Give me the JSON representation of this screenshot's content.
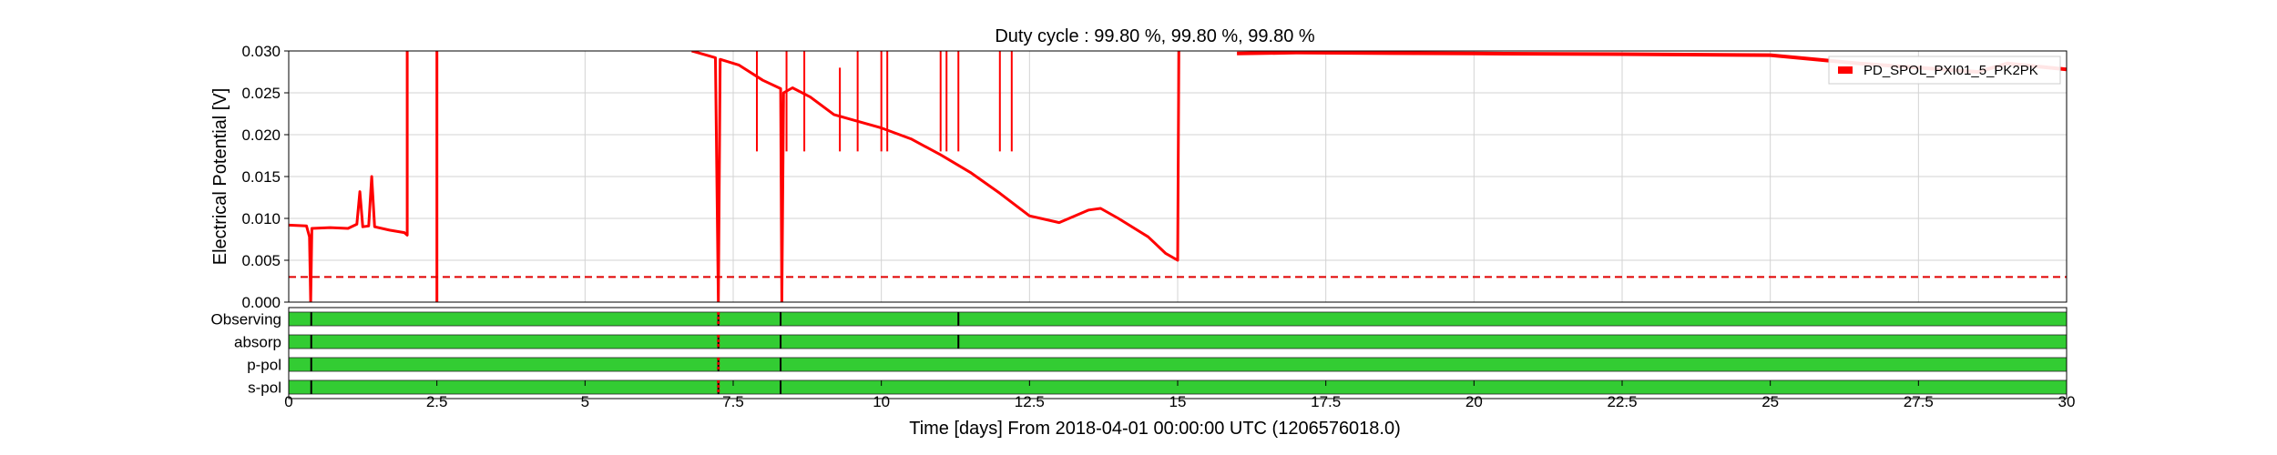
{
  "chart_data": {
    "type": "line",
    "title": "Duty cycle : 99.80 %, 99.80 %, 99.80 %",
    "xlabel": "Time [days] From 2018-04-01 00:00:00 UTC (1206576018.0)",
    "ylabel": "Electrical Potential [V]",
    "xlim": [
      0,
      30
    ],
    "ylim": [
      0,
      0.03
    ],
    "xticks": [
      "0",
      "2.5",
      "5",
      "7.5",
      "10",
      "12.5",
      "15",
      "17.5",
      "20",
      "22.5",
      "25",
      "27.5",
      "30"
    ],
    "yticks": [
      "0.000",
      "0.005",
      "0.010",
      "0.015",
      "0.020",
      "0.025",
      "0.030"
    ],
    "grid": true,
    "legend_position": "top-right",
    "series": [
      {
        "name": "PD_SPOL_PXI01_5_PK2PK",
        "color": "#ff0000",
        "segments": [
          [
            [
              0,
              0.0092
            ],
            [
              0.3,
              0.0091
            ],
            [
              0.35,
              0.0078
            ],
            [
              0.37,
              0.0
            ],
            [
              0.39,
              0.0088
            ],
            [
              0.7,
              0.0089
            ],
            [
              1.0,
              0.0088
            ],
            [
              1.15,
              0.0093
            ],
            [
              1.2,
              0.0132
            ],
            [
              1.25,
              0.009
            ],
            [
              1.35,
              0.0091
            ],
            [
              1.4,
              0.015
            ],
            [
              1.45,
              0.009
            ],
            [
              1.7,
              0.0086
            ],
            [
              1.95,
              0.0083
            ],
            [
              2.0,
              0.008
            ],
            [
              2.0,
              0.03
            ]
          ],
          [
            [
              2.5,
              0.03
            ],
            [
              2.5,
              0.0
            ]
          ],
          [
            [
              6.8,
              0.03
            ],
            [
              7.0,
              0.0296
            ],
            [
              7.2,
              0.0292
            ],
            [
              7.25,
              0.0
            ],
            [
              7.28,
              0.029
            ],
            [
              7.6,
              0.0283
            ],
            [
              8.0,
              0.0265
            ],
            [
              8.3,
              0.0255
            ],
            [
              8.32,
              0.0
            ],
            [
              8.35,
              0.025
            ],
            [
              8.5,
              0.0256
            ],
            [
              8.8,
              0.0245
            ],
            [
              9.2,
              0.0224
            ],
            [
              9.5,
              0.0218
            ],
            [
              10.0,
              0.0208
            ],
            [
              10.5,
              0.0195
            ],
            [
              11.0,
              0.0176
            ],
            [
              11.5,
              0.0155
            ],
            [
              12.0,
              0.013
            ],
            [
              12.5,
              0.0103
            ],
            [
              13.0,
              0.0095
            ],
            [
              13.5,
              0.011
            ],
            [
              13.7,
              0.0112
            ],
            [
              14.0,
              0.01
            ],
            [
              14.5,
              0.0078
            ],
            [
              14.8,
              0.0058
            ],
            [
              15.0,
              0.005
            ],
            [
              15.02,
              0.03
            ]
          ]
        ],
        "spikes": [
          [
            7.9,
            0.03
          ],
          [
            8.4,
            0.03
          ],
          [
            8.7,
            0.03
          ],
          [
            9.3,
            0.028
          ],
          [
            9.6,
            0.03
          ],
          [
            10.0,
            0.03
          ],
          [
            10.1,
            0.03
          ],
          [
            11.0,
            0.03
          ],
          [
            11.1,
            0.03
          ],
          [
            11.3,
            0.03
          ],
          [
            12.0,
            0.03
          ],
          [
            12.2,
            0.03
          ]
        ],
        "high_band": [
          [
            16.0,
            0.0297
          ],
          [
            17.0,
            0.0298
          ],
          [
            20.0,
            0.0297
          ],
          [
            23.0,
            0.0296
          ],
          [
            25.0,
            0.0295
          ],
          [
            26.5,
            0.0285
          ],
          [
            27.5,
            0.028
          ],
          [
            28.5,
            0.0275
          ],
          [
            29.0,
            0.0285
          ],
          [
            30.0,
            0.0278
          ]
        ]
      }
    ],
    "threshold": {
      "value": 0.003,
      "color": "#e00000",
      "style": "dashed"
    },
    "state_bars": [
      {
        "name": "Observing",
        "color": "#33cc33",
        "gaps": [
          0.38,
          7.25,
          8.3,
          11.3
        ]
      },
      {
        "name": "absorp",
        "color": "#33cc33",
        "gaps": [
          0.38,
          7.25,
          8.3,
          11.3
        ]
      },
      {
        "name": "p-pol",
        "color": "#33cc33",
        "gaps": [
          0.38,
          7.25,
          8.3
        ]
      },
      {
        "name": "s-pol",
        "color": "#33cc33",
        "gaps": [
          0.38,
          7.25,
          8.3
        ]
      }
    ],
    "state_marker_color": "#e00000"
  }
}
